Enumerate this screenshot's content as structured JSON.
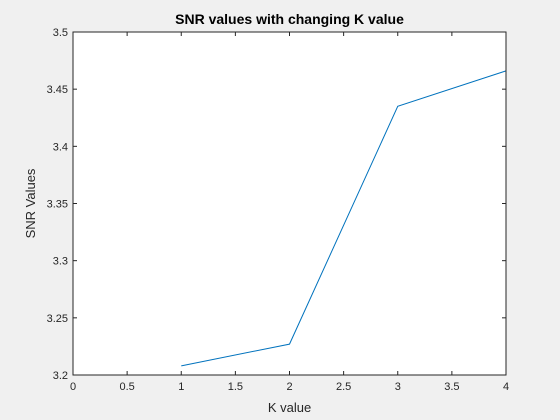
{
  "chart_data": {
    "type": "line",
    "title": "SNR values with changing K value",
    "xlabel": "K value",
    "ylabel": "SNR Values",
    "xlim": [
      0,
      4
    ],
    "ylim": [
      3.2,
      3.5
    ],
    "xticks": [
      "0",
      "0.5",
      "1",
      "1.5",
      "2",
      "2.5",
      "3",
      "3.5",
      "4"
    ],
    "yticks": [
      "3.2",
      "3.25",
      "3.3",
      "3.35",
      "3.4",
      "3.45",
      "3.5"
    ],
    "grid": false,
    "series": [
      {
        "x": [
          1,
          2,
          3,
          4
        ],
        "y": [
          3.208,
          3.227,
          3.435,
          3.466
        ],
        "color": "#0072bd"
      }
    ]
  }
}
